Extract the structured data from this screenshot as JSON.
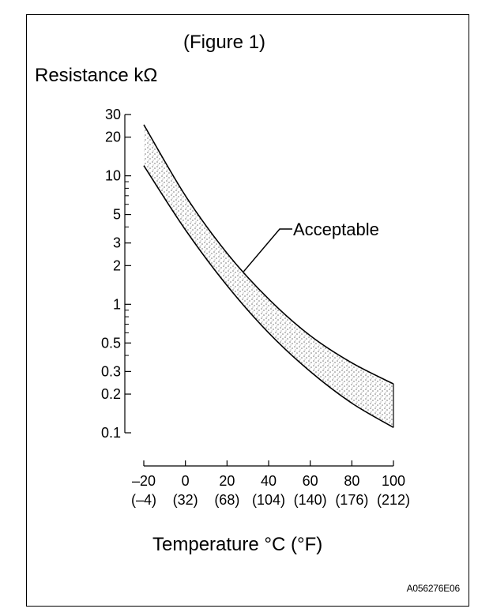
{
  "figure": {
    "title": "(Figure 1)",
    "code": "A056276E06"
  },
  "chart_data": {
    "type": "area",
    "title": "(Figure 1)",
    "ylabel": "Resistance kΩ",
    "xlabel": "Temperature °C (°F)",
    "x_unit": "°C",
    "y_unit": "kΩ",
    "y_scale": "log",
    "xlim": [
      -20,
      100
    ],
    "ylim": [
      0.1,
      30
    ],
    "x_ticks": [
      -20,
      0,
      20,
      40,
      60,
      80,
      100
    ],
    "x_tick_labels": [
      "–20",
      "0",
      "20",
      "40",
      "60",
      "80",
      "100"
    ],
    "x_tick_sublabels": [
      "(–4)",
      "(32)",
      "(68)",
      "(104)",
      "(140)",
      "(176)",
      "(212)"
    ],
    "y_ticks": [
      30,
      20,
      10,
      5,
      3,
      2,
      1,
      0.5,
      0.3,
      0.2,
      0.1
    ],
    "y_tick_labels": [
      "30",
      "20",
      "10",
      "5",
      "3",
      "2",
      "1",
      "0.5",
      "0.3",
      "0.2",
      "0.1"
    ],
    "y_minor_ticks": [
      9,
      8,
      7,
      6,
      4,
      0.9,
      0.8,
      0.7,
      0.6,
      0.4
    ],
    "grid": false,
    "band_label": "Acceptable",
    "series": [
      {
        "name": "upper",
        "x": [
          -20,
          0,
          20,
          40,
          60,
          80,
          100
        ],
        "y": [
          25,
          7,
          2.5,
          1.1,
          0.57,
          0.35,
          0.24
        ]
      },
      {
        "name": "lower",
        "x": [
          -20,
          0,
          20,
          40,
          60,
          80,
          100
        ],
        "y": [
          12,
          3.8,
          1.4,
          0.6,
          0.3,
          0.17,
          0.11
        ]
      }
    ],
    "annotations": [
      {
        "text": "Acceptable",
        "points_to": {
          "x": 28,
          "y": 1.8
        }
      }
    ]
  }
}
